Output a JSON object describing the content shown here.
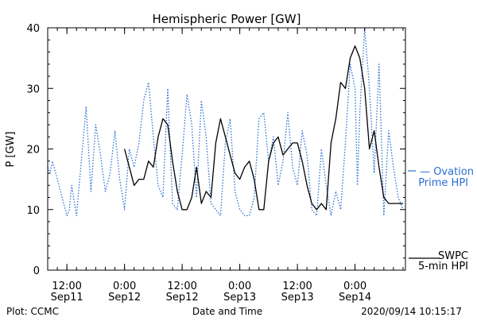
{
  "chart_data": {
    "type": "line",
    "title": "Hemispheric Power [GW]",
    "xlabel": "Date and Time",
    "ylabel": "P [GW]",
    "ylim": [
      0,
      40
    ],
    "yticks": [
      "0",
      "10",
      "20",
      "30",
      "40"
    ],
    "xlim": [
      "2020-09-11T08:00",
      "2020-09-14T10:30"
    ],
    "xticks": [
      {
        "time": "2020-09-11T12:00",
        "line1": "12:00",
        "line2": "Sep11"
      },
      {
        "time": "2020-09-12T00:00",
        "line1": "0:00",
        "line2": "Sep12"
      },
      {
        "time": "2020-09-12T12:00",
        "line1": "12:00",
        "line2": "Sep12"
      },
      {
        "time": "2020-09-13T00:00",
        "line1": "0:00",
        "line2": "Sep13"
      },
      {
        "time": "2020-09-13T12:00",
        "line1": "12:00",
        "line2": "Sep13"
      },
      {
        "time": "2020-09-14T00:00",
        "line1": "0:00",
        "line2": "Sep14"
      }
    ],
    "grid": false,
    "series": [
      {
        "name": "Ovation Prime HPI",
        "legend_line1": "— Ovation",
        "legend_line2": "Prime HPI",
        "style": "dotted",
        "color": "#2a6fd6",
        "x": [
          "2020-09-11T08:00",
          "2020-09-11T08:30",
          "2020-09-11T09:00",
          "2020-09-11T10:00",
          "2020-09-11T11:00",
          "2020-09-11T12:00",
          "2020-09-11T12:30",
          "2020-09-11T13:00",
          "2020-09-11T14:00",
          "2020-09-11T15:00",
          "2020-09-11T16:00",
          "2020-09-11T17:00",
          "2020-09-11T18:00",
          "2020-09-11T19:00",
          "2020-09-11T20:00",
          "2020-09-11T21:00",
          "2020-09-11T22:00",
          "2020-09-11T23:00",
          "2020-09-12T00:00",
          "2020-09-12T01:00",
          "2020-09-12T02:00",
          "2020-09-12T03:00",
          "2020-09-12T04:00",
          "2020-09-12T05:00",
          "2020-09-12T06:00",
          "2020-09-12T07:00",
          "2020-09-12T08:00",
          "2020-09-12T09:00",
          "2020-09-12T10:00",
          "2020-09-12T11:00",
          "2020-09-12T12:00",
          "2020-09-12T13:00",
          "2020-09-12T14:00",
          "2020-09-12T15:00",
          "2020-09-12T16:00",
          "2020-09-12T17:00",
          "2020-09-12T18:00",
          "2020-09-12T19:00",
          "2020-09-12T20:00",
          "2020-09-12T21:00",
          "2020-09-12T22:00",
          "2020-09-12T23:00",
          "2020-09-13T00:00",
          "2020-09-13T01:00",
          "2020-09-13T02:00",
          "2020-09-13T03:00",
          "2020-09-13T04:00",
          "2020-09-13T05:00",
          "2020-09-13T06:00",
          "2020-09-13T07:00",
          "2020-09-13T08:00",
          "2020-09-13T09:00",
          "2020-09-13T10:00",
          "2020-09-13T11:00",
          "2020-09-13T12:00",
          "2020-09-13T13:00",
          "2020-09-13T14:00",
          "2020-09-13T15:00",
          "2020-09-13T16:00",
          "2020-09-13T17:00",
          "2020-09-13T18:00",
          "2020-09-13T19:00",
          "2020-09-13T20:00",
          "2020-09-13T21:00",
          "2020-09-13T22:00",
          "2020-09-13T23:00",
          "2020-09-14T00:00",
          "2020-09-14T00:30",
          "2020-09-14T01:00",
          "2020-09-14T02:00",
          "2020-09-14T03:00",
          "2020-09-14T04:00",
          "2020-09-14T05:00",
          "2020-09-14T06:00",
          "2020-09-14T07:00",
          "2020-09-14T08:00",
          "2020-09-14T09:00",
          "2020-09-14T10:00"
        ],
        "values": [
          17,
          16,
          18,
          15,
          12,
          9,
          10,
          14,
          9,
          18,
          27,
          13,
          24,
          19,
          13,
          16,
          23,
          15,
          10,
          20,
          17,
          21,
          28,
          31,
          22,
          14,
          12,
          30,
          11,
          10,
          19,
          29,
          24,
          12,
          28,
          22,
          11,
          10,
          9,
          21,
          25,
          13,
          10,
          9,
          9,
          12,
          25,
          26,
          18,
          22,
          14,
          18,
          26,
          17,
          14,
          23,
          19,
          10,
          9,
          20,
          14,
          9,
          13,
          10,
          21,
          34,
          30,
          14,
          26,
          40,
          30,
          16,
          34,
          9,
          23,
          17,
          12,
          10
        ]
      },
      {
        "name": "SWPC 5-min HPI",
        "legend_line1": "SWPC",
        "legend_line2": "5-min HPI",
        "style": "solid",
        "color": "#000000",
        "x": [
          "2020-09-12T00:00",
          "2020-09-12T01:00",
          "2020-09-12T02:00",
          "2020-09-12T03:00",
          "2020-09-12T04:00",
          "2020-09-12T05:00",
          "2020-09-12T06:00",
          "2020-09-12T07:00",
          "2020-09-12T08:00",
          "2020-09-12T09:00",
          "2020-09-12T10:00",
          "2020-09-12T11:00",
          "2020-09-12T12:00",
          "2020-09-12T13:00",
          "2020-09-12T14:00",
          "2020-09-12T15:00",
          "2020-09-12T16:00",
          "2020-09-12T17:00",
          "2020-09-12T18:00",
          "2020-09-12T19:00",
          "2020-09-12T20:00",
          "2020-09-12T21:00",
          "2020-09-12T22:00",
          "2020-09-12T23:00",
          "2020-09-13T00:00",
          "2020-09-13T01:00",
          "2020-09-13T02:00",
          "2020-09-13T03:00",
          "2020-09-13T04:00",
          "2020-09-13T05:00",
          "2020-09-13T06:00",
          "2020-09-13T07:00",
          "2020-09-13T08:00",
          "2020-09-13T09:00",
          "2020-09-13T10:00",
          "2020-09-13T11:00",
          "2020-09-13T12:00",
          "2020-09-13T13:00",
          "2020-09-13T14:00",
          "2020-09-13T15:00",
          "2020-09-13T16:00",
          "2020-09-13T17:00",
          "2020-09-13T18:00",
          "2020-09-13T19:00",
          "2020-09-13T20:00",
          "2020-09-13T21:00",
          "2020-09-13T22:00",
          "2020-09-13T23:00",
          "2020-09-14T00:00",
          "2020-09-14T01:00",
          "2020-09-14T02:00",
          "2020-09-14T03:00",
          "2020-09-14T04:00",
          "2020-09-14T05:00",
          "2020-09-14T06:00",
          "2020-09-14T07:00",
          "2020-09-14T08:00",
          "2020-09-14T09:00",
          "2020-09-14T10:00"
        ],
        "values": [
          20,
          17,
          14,
          15,
          15,
          18,
          17,
          22,
          25,
          24,
          18,
          13,
          10,
          10,
          12,
          17,
          11,
          13,
          12,
          21,
          25,
          22,
          19,
          16,
          15,
          17,
          18,
          15,
          10,
          10,
          18,
          21,
          22,
          19,
          20,
          21,
          21,
          18,
          14,
          11,
          10,
          11,
          10,
          21,
          25,
          31,
          30,
          35,
          37,
          35,
          30,
          20,
          23,
          17,
          12,
          11,
          11,
          11,
          11
        ]
      }
    ]
  },
  "footer": {
    "left": "Plot: CCMC",
    "center": "Date and Time",
    "right": "2020/09/14 10:15:17"
  }
}
